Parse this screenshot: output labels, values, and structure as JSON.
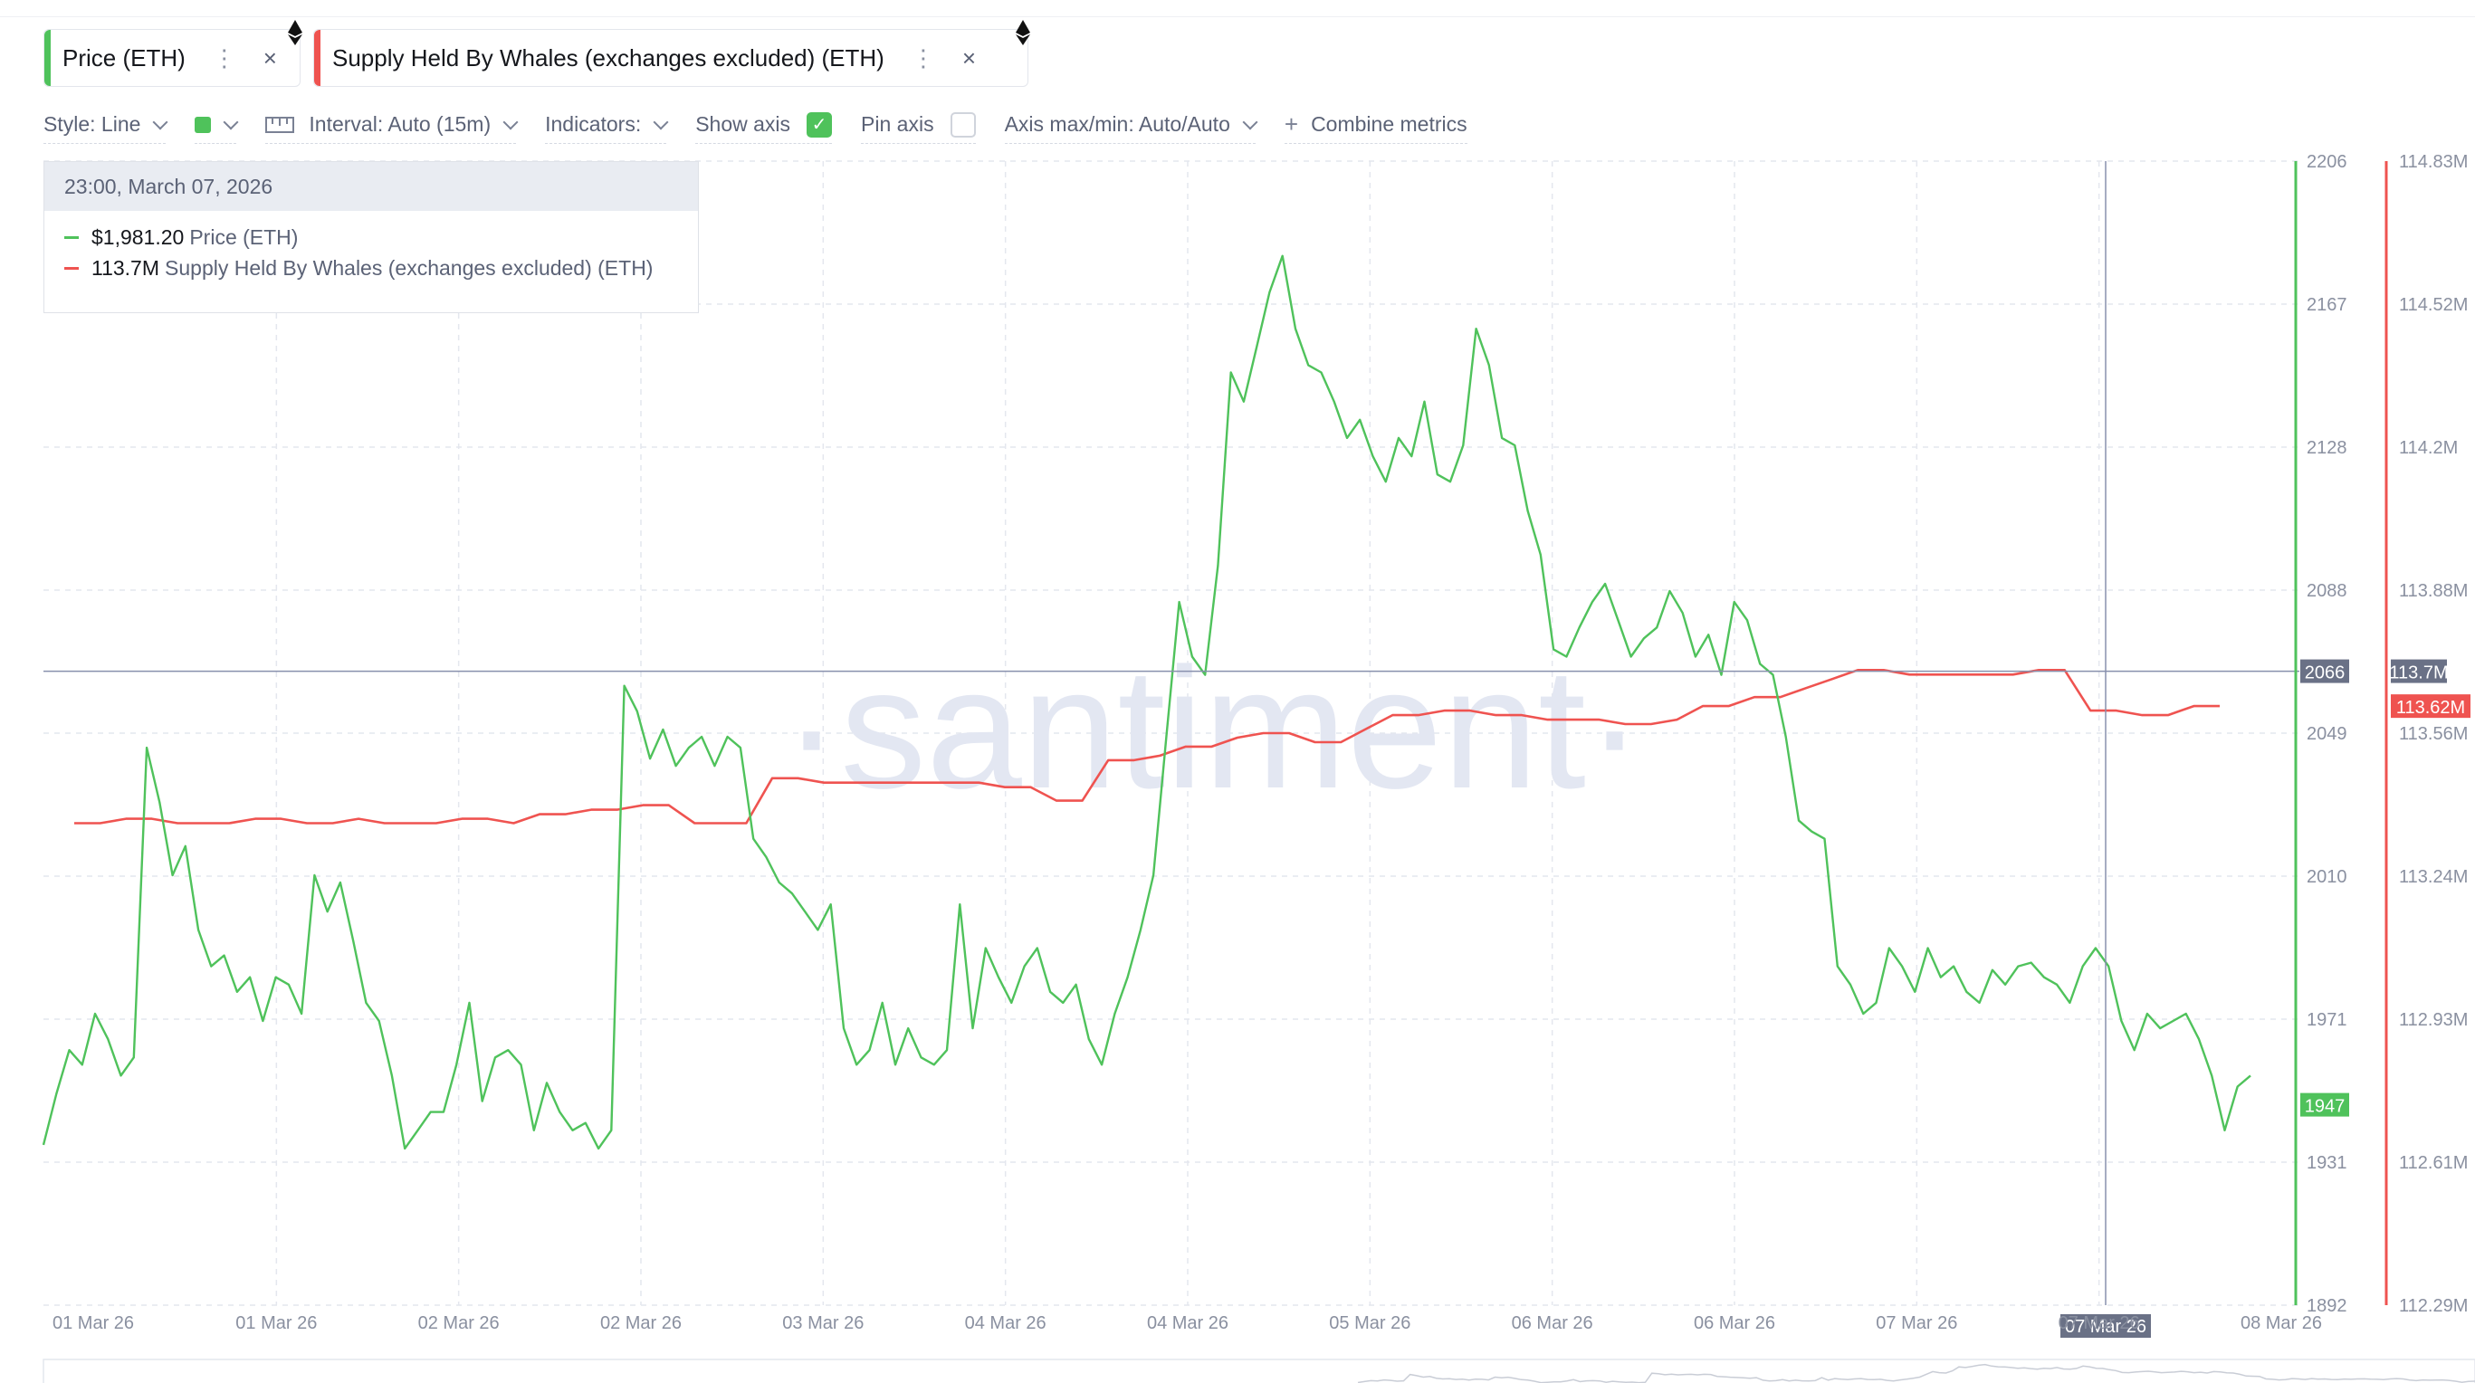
{
  "metrics": [
    {
      "label": "Price (ETH)",
      "color": "#4fc25b",
      "menu_icon": "kebab-icon",
      "close_icon": "close-icon"
    },
    {
      "label": "Supply Held By Whales (exchanges excluded) (ETH)",
      "color": "#ef5350",
      "menu_icon": "kebab-icon",
      "close_icon": "close-icon"
    }
  ],
  "toolbar": {
    "style": "Style: Line",
    "interval": "Interval: Auto (15m)",
    "indicators": "Indicators:",
    "show_axis": "Show axis",
    "show_axis_checked": true,
    "pin_axis": "Pin axis",
    "pin_axis_checked": false,
    "axis_minmax": "Axis max/min: Auto/Auto",
    "combine": "Combine metrics"
  },
  "tooltip": {
    "date": "23:00, March 07, 2026",
    "rows": [
      {
        "value": "$1,981.20",
        "label": "Price (ETH)",
        "color": "#4fc25b"
      },
      {
        "value": "113.7M",
        "label": "Supply Held By Whales (exchanges excluded) (ETH)",
        "color": "#ef5350"
      }
    ]
  },
  "watermark": "·santiment·",
  "chart_data": {
    "type": "line",
    "x_labels": [
      "01 Mar 26",
      "01 Mar 26",
      "02 Mar 26",
      "02 Mar 26",
      "03 Mar 26",
      "04 Mar 26",
      "04 Mar 26",
      "05 Mar 26",
      "06 Mar 26",
      "06 Mar 26",
      "07 Mar 26",
      "07 Mar 26",
      "08 Mar 26"
    ],
    "highlight_x_label": "07 Mar 26",
    "grid": true,
    "series": [
      {
        "name": "Price (ETH)",
        "color": "#4fc25b",
        "axis": "left",
        "ylim": [
          1892,
          2206
        ],
        "ticks": [
          "2206",
          "2167",
          "2128",
          "2088",
          "2049",
          "2010",
          "1971",
          "1931",
          "1892"
        ],
        "current_label": "1947",
        "values": [
          1936,
          1950,
          1962,
          1958,
          1972,
          1965,
          1955,
          1960,
          2045,
          2030,
          2010,
          2018,
          1995,
          1985,
          1988,
          1978,
          1982,
          1970,
          1982,
          1980,
          1972,
          2010,
          2000,
          2008,
          1992,
          1975,
          1970,
          1955,
          1935,
          1940,
          1945,
          1945,
          1958,
          1975,
          1948,
          1960,
          1962,
          1958,
          1940,
          1953,
          1945,
          1940,
          1942,
          1935,
          1940,
          2062,
          2055,
          2042,
          2050,
          2040,
          2045,
          2048,
          2040,
          2048,
          2045,
          2020,
          2015,
          2008,
          2005,
          2000,
          1995,
          2002,
          1968,
          1958,
          1962,
          1975,
          1958,
          1968,
          1960,
          1958,
          1962,
          2002,
          1968,
          1990,
          1982,
          1975,
          1985,
          1990,
          1978,
          1975,
          1980,
          1965,
          1958,
          1972,
          1982,
          1995,
          2010,
          2048,
          2085,
          2070,
          2065,
          2095,
          2148,
          2140,
          2155,
          2170,
          2180,
          2160,
          2150,
          2148,
          2140,
          2130,
          2135,
          2125,
          2118,
          2130,
          2125,
          2140,
          2120,
          2118,
          2128,
          2160,
          2150,
          2130,
          2128,
          2110,
          2098,
          2072,
          2070,
          2078,
          2085,
          2090,
          2080,
          2070,
          2075,
          2078,
          2088,
          2082,
          2070,
          2076,
          2065,
          2085,
          2080,
          2068,
          2065,
          2048,
          2025,
          2022,
          2020,
          1985,
          1980,
          1972,
          1975,
          1990,
          1985,
          1978,
          1990,
          1982,
          1985,
          1978,
          1975,
          1984,
          1980,
          1985,
          1986,
          1982,
          1980,
          1975,
          1985,
          1990,
          1985,
          1970,
          1962,
          1972,
          1968,
          1970,
          1972,
          1965,
          1955,
          1940,
          1952,
          1955
        ]
      },
      {
        "name": "Supply Held By Whales (exchanges excluded) (ETH)",
        "color": "#ef5350",
        "axis": "right",
        "ylim": [
          112.29,
          114.83
        ],
        "ticks": [
          "114.83M",
          "114.52M",
          "114.2M",
          "113.88M",
          "113.56M",
          "113.24M",
          "112.93M",
          "112.61M",
          "112.29M"
        ],
        "current_label": "113.62M",
        "crosshair_label": "113.7M",
        "values": [
          113.36,
          113.36,
          113.37,
          113.37,
          113.36,
          113.36,
          113.36,
          113.37,
          113.37,
          113.36,
          113.36,
          113.37,
          113.36,
          113.36,
          113.36,
          113.37,
          113.37,
          113.36,
          113.38,
          113.38,
          113.39,
          113.39,
          113.4,
          113.4,
          113.36,
          113.36,
          113.36,
          113.46,
          113.46,
          113.45,
          113.45,
          113.45,
          113.45,
          113.45,
          113.45,
          113.45,
          113.44,
          113.44,
          113.41,
          113.41,
          113.5,
          113.5,
          113.51,
          113.53,
          113.53,
          113.55,
          113.56,
          113.56,
          113.54,
          113.54,
          113.57,
          113.6,
          113.6,
          113.61,
          113.61,
          113.6,
          113.6,
          113.59,
          113.59,
          113.59,
          113.58,
          113.58,
          113.59,
          113.62,
          113.62,
          113.64,
          113.64,
          113.66,
          113.68,
          113.7,
          113.7,
          113.69,
          113.69,
          113.69,
          113.69,
          113.69,
          113.7,
          113.7,
          113.61,
          113.61,
          113.6,
          113.6,
          113.62,
          113.62
        ]
      }
    ],
    "crosshair": {
      "x_label": "07 Mar 26",
      "price_label": "2066"
    }
  }
}
